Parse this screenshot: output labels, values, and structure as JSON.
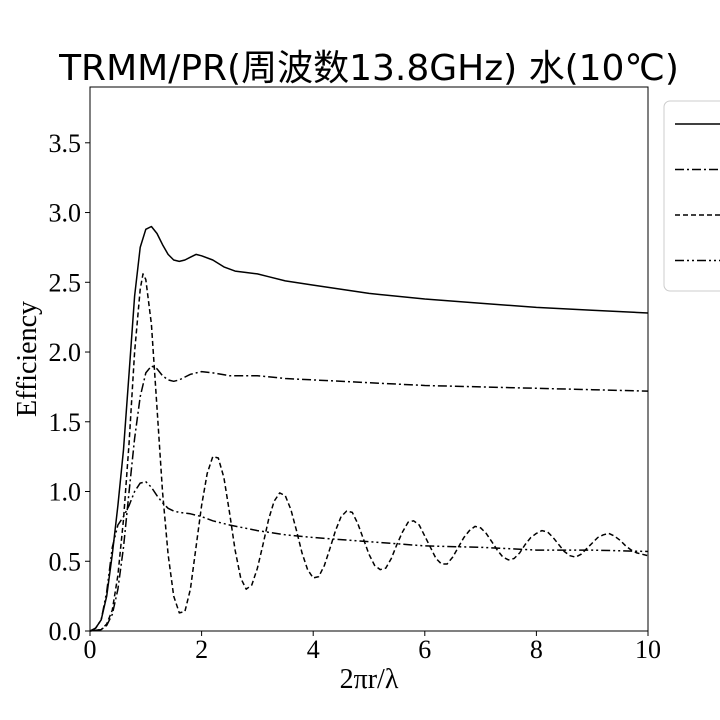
{
  "chart_data": {
    "type": "line",
    "title": "TRMM/PR(周波数13.8GHz) 水(10℃)",
    "xlabel": "2πr/λ",
    "ylabel": "Efficiency",
    "xlim": [
      0,
      10
    ],
    "ylim": [
      0,
      3.9
    ],
    "xticks": [
      0,
      2,
      4,
      6,
      8,
      10
    ],
    "yticks": [
      0.0,
      0.5,
      1.0,
      1.5,
      2.0,
      2.5,
      3.0,
      3.5
    ],
    "grid": false,
    "legend_placement": "right, partially outside plot",
    "series": [
      {
        "style": "solid",
        "points": [
          [
            0,
            0
          ],
          [
            0.1,
            0.02
          ],
          [
            0.2,
            0.08
          ],
          [
            0.3,
            0.25
          ],
          [
            0.4,
            0.55
          ],
          [
            0.5,
            0.9
          ],
          [
            0.6,
            1.3
          ],
          [
            0.7,
            1.85
          ],
          [
            0.8,
            2.4
          ],
          [
            0.9,
            2.75
          ],
          [
            1.0,
            2.88
          ],
          [
            1.1,
            2.9
          ],
          [
            1.2,
            2.85
          ],
          [
            1.3,
            2.77
          ],
          [
            1.4,
            2.7
          ],
          [
            1.5,
            2.66
          ],
          [
            1.6,
            2.65
          ],
          [
            1.7,
            2.66
          ],
          [
            1.8,
            2.68
          ],
          [
            1.9,
            2.7
          ],
          [
            2.0,
            2.69
          ],
          [
            2.2,
            2.66
          ],
          [
            2.4,
            2.61
          ],
          [
            2.6,
            2.58
          ],
          [
            2.8,
            2.57
          ],
          [
            3.0,
            2.56
          ],
          [
            3.2,
            2.54
          ],
          [
            3.5,
            2.51
          ],
          [
            4.0,
            2.48
          ],
          [
            4.5,
            2.45
          ],
          [
            5.0,
            2.42
          ],
          [
            6.0,
            2.38
          ],
          [
            7.0,
            2.35
          ],
          [
            8.0,
            2.32
          ],
          [
            9.0,
            2.3
          ],
          [
            10.0,
            2.28
          ]
        ]
      },
      {
        "style": "dashdot",
        "points": [
          [
            0,
            0
          ],
          [
            0.2,
            0.01
          ],
          [
            0.3,
            0.04
          ],
          [
            0.4,
            0.12
          ],
          [
            0.5,
            0.3
          ],
          [
            0.6,
            0.6
          ],
          [
            0.7,
            1.0
          ],
          [
            0.8,
            1.38
          ],
          [
            0.9,
            1.68
          ],
          [
            1.0,
            1.85
          ],
          [
            1.1,
            1.9
          ],
          [
            1.2,
            1.88
          ],
          [
            1.3,
            1.83
          ],
          [
            1.4,
            1.8
          ],
          [
            1.5,
            1.79
          ],
          [
            1.6,
            1.8
          ],
          [
            1.8,
            1.84
          ],
          [
            2.0,
            1.86
          ],
          [
            2.2,
            1.85
          ],
          [
            2.5,
            1.83
          ],
          [
            3.0,
            1.83
          ],
          [
            3.5,
            1.81
          ],
          [
            4.0,
            1.8
          ],
          [
            5.0,
            1.78
          ],
          [
            6.0,
            1.76
          ],
          [
            7.0,
            1.75
          ],
          [
            8.0,
            1.74
          ],
          [
            9.0,
            1.73
          ],
          [
            10.0,
            1.72
          ]
        ]
      },
      {
        "style": "dashed",
        "points": [
          [
            0,
            0
          ],
          [
            0.2,
            0.01
          ],
          [
            0.3,
            0.05
          ],
          [
            0.4,
            0.15
          ],
          [
            0.5,
            0.4
          ],
          [
            0.6,
            0.8
          ],
          [
            0.7,
            1.35
          ],
          [
            0.8,
            2.0
          ],
          [
            0.9,
            2.45
          ],
          [
            0.95,
            2.56
          ],
          [
            1.0,
            2.52
          ],
          [
            1.1,
            2.2
          ],
          [
            1.2,
            1.6
          ],
          [
            1.3,
            1.0
          ],
          [
            1.4,
            0.55
          ],
          [
            1.5,
            0.25
          ],
          [
            1.6,
            0.13
          ],
          [
            1.7,
            0.14
          ],
          [
            1.8,
            0.3
          ],
          [
            1.9,
            0.6
          ],
          [
            2.0,
            0.9
          ],
          [
            2.1,
            1.13
          ],
          [
            2.2,
            1.25
          ],
          [
            2.3,
            1.24
          ],
          [
            2.4,
            1.1
          ],
          [
            2.5,
            0.85
          ],
          [
            2.6,
            0.58
          ],
          [
            2.7,
            0.38
          ],
          [
            2.8,
            0.3
          ],
          [
            2.9,
            0.33
          ],
          [
            3.0,
            0.45
          ],
          [
            3.1,
            0.62
          ],
          [
            3.2,
            0.8
          ],
          [
            3.3,
            0.93
          ],
          [
            3.4,
            0.99
          ],
          [
            3.5,
            0.97
          ],
          [
            3.6,
            0.87
          ],
          [
            3.7,
            0.72
          ],
          [
            3.8,
            0.56
          ],
          [
            3.9,
            0.44
          ],
          [
            4.0,
            0.38
          ],
          [
            4.1,
            0.39
          ],
          [
            4.2,
            0.47
          ],
          [
            4.3,
            0.59
          ],
          [
            4.4,
            0.72
          ],
          [
            4.5,
            0.82
          ],
          [
            4.6,
            0.86
          ],
          [
            4.7,
            0.85
          ],
          [
            4.8,
            0.77
          ],
          [
            4.9,
            0.66
          ],
          [
            5.0,
            0.55
          ],
          [
            5.1,
            0.47
          ],
          [
            5.2,
            0.44
          ],
          [
            5.3,
            0.45
          ],
          [
            5.4,
            0.52
          ],
          [
            5.5,
            0.62
          ],
          [
            5.6,
            0.71
          ],
          [
            5.7,
            0.78
          ],
          [
            5.8,
            0.79
          ],
          [
            5.9,
            0.76
          ],
          [
            6.0,
            0.68
          ],
          [
            6.1,
            0.6
          ],
          [
            6.2,
            0.52
          ],
          [
            6.3,
            0.48
          ],
          [
            6.4,
            0.48
          ],
          [
            6.5,
            0.53
          ],
          [
            6.6,
            0.6
          ],
          [
            6.7,
            0.67
          ],
          [
            6.8,
            0.72
          ],
          [
            6.9,
            0.75
          ],
          [
            7.0,
            0.74
          ],
          [
            7.1,
            0.7
          ],
          [
            7.2,
            0.64
          ],
          [
            7.3,
            0.58
          ],
          [
            7.4,
            0.53
          ],
          [
            7.5,
            0.51
          ],
          [
            7.6,
            0.52
          ],
          [
            7.7,
            0.56
          ],
          [
            7.8,
            0.62
          ],
          [
            7.9,
            0.67
          ],
          [
            8.0,
            0.7
          ],
          [
            8.1,
            0.72
          ],
          [
            8.2,
            0.71
          ],
          [
            8.3,
            0.67
          ],
          [
            8.4,
            0.62
          ],
          [
            8.5,
            0.57
          ],
          [
            8.6,
            0.54
          ],
          [
            8.7,
            0.53
          ],
          [
            8.8,
            0.55
          ],
          [
            8.9,
            0.59
          ],
          [
            9.0,
            0.63
          ],
          [
            9.1,
            0.67
          ],
          [
            9.2,
            0.69
          ],
          [
            9.3,
            0.7
          ],
          [
            9.4,
            0.68
          ],
          [
            9.5,
            0.65
          ],
          [
            9.6,
            0.61
          ],
          [
            9.7,
            0.58
          ],
          [
            9.8,
            0.56
          ],
          [
            9.9,
            0.55
          ],
          [
            10.0,
            0.54
          ]
        ]
      },
      {
        "style": "dashdotdot",
        "points": [
          [
            0,
            0
          ],
          [
            0.1,
            0.02
          ],
          [
            0.2,
            0.08
          ],
          [
            0.3,
            0.28
          ],
          [
            0.4,
            0.6
          ],
          [
            0.5,
            0.76
          ],
          [
            0.6,
            0.82
          ],
          [
            0.7,
            0.9
          ],
          [
            0.8,
            1.0
          ],
          [
            0.9,
            1.06
          ],
          [
            1.0,
            1.07
          ],
          [
            1.1,
            1.03
          ],
          [
            1.2,
            0.97
          ],
          [
            1.3,
            0.92
          ],
          [
            1.4,
            0.88
          ],
          [
            1.5,
            0.86
          ],
          [
            1.6,
            0.85
          ],
          [
            1.8,
            0.84
          ],
          [
            2.0,
            0.82
          ],
          [
            2.2,
            0.79
          ],
          [
            2.5,
            0.76
          ],
          [
            3.0,
            0.72
          ],
          [
            3.5,
            0.69
          ],
          [
            4.0,
            0.67
          ],
          [
            5.0,
            0.64
          ],
          [
            6.0,
            0.61
          ],
          [
            7.0,
            0.6
          ],
          [
            8.0,
            0.58
          ],
          [
            9.0,
            0.58
          ],
          [
            10.0,
            0.57
          ]
        ]
      }
    ]
  }
}
